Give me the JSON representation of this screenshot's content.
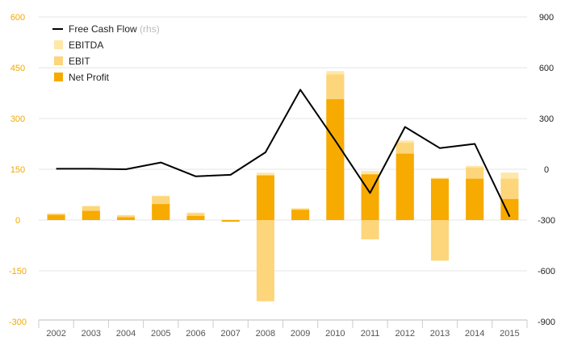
{
  "colors": {
    "ebitda": "#FFE7A8",
    "ebit": "#FDD57A",
    "net_profit": "#F7AA00",
    "line": "#000000",
    "left_axis_text": "#F2A900",
    "right_axis_text": "#222222",
    "grid": "#E6E6E6",
    "x_axis_text": "#555555",
    "rhs_note": "#BBBBBB"
  },
  "chart_data": {
    "type": "bar",
    "categories": [
      "2002",
      "2003",
      "2004",
      "2005",
      "2006",
      "2007",
      "2008",
      "2009",
      "2010",
      "2011",
      "2012",
      "2013",
      "2014",
      "2015"
    ],
    "y_left": {
      "ticks": [
        600,
        450,
        300,
        150,
        0,
        -150,
        -300
      ],
      "ylim": [
        -300,
        600
      ]
    },
    "y_right": {
      "ticks": [
        900,
        600,
        300,
        0,
        -300,
        -600,
        -900
      ],
      "ylim": [
        -900,
        900
      ]
    },
    "legend": {
      "placement": "top-left",
      "items": [
        {
          "key": "free_cash_flow",
          "label": "Free Cash Flow",
          "note": "(rhs)"
        },
        {
          "key": "ebitda",
          "label": "EBITDA"
        },
        {
          "key": "ebit",
          "label": "EBIT"
        },
        {
          "key": "net_profit",
          "label": "Net Profit"
        }
      ]
    },
    "series": [
      {
        "key": "ebitda",
        "axis": "left",
        "values": [
          20,
          42,
          15,
          72,
          22,
          -3,
          140,
          35,
          440,
          145,
          235,
          125,
          160,
          140
        ]
      },
      {
        "key": "ebit",
        "axis": "left",
        "values": [
          18,
          40,
          13,
          70,
          20,
          -4,
          -240,
          33,
          430,
          -57,
          228,
          -120,
          155,
          122
        ]
      },
      {
        "key": "net_profit",
        "axis": "left",
        "values": [
          15,
          27,
          8,
          47,
          12,
          -5,
          132,
          30,
          357,
          135,
          196,
          122,
          122,
          62
        ]
      },
      {
        "key": "free_cash_flow",
        "axis": "right",
        "type": "line",
        "values": [
          3,
          3,
          0,
          40,
          -42,
          -33,
          100,
          470,
          170,
          -140,
          250,
          125,
          150,
          -280
        ]
      }
    ]
  }
}
